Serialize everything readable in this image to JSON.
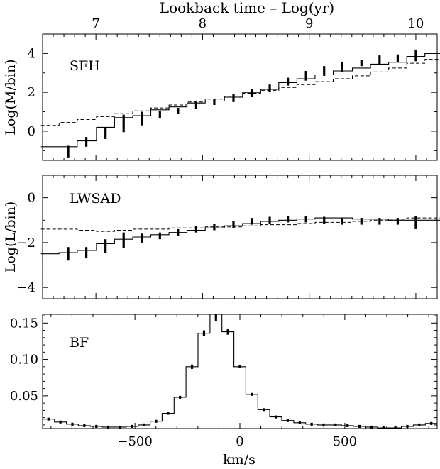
{
  "chart_data": [
    {
      "type": "line",
      "panel_label": "SFH",
      "top_axis_label": "Lookback time – Log(yr)",
      "top_axis_ticks": [
        "7",
        "8",
        "9",
        "10"
      ],
      "top_axis_range": [
        6.5,
        10.2
      ],
      "ylabel": "Log(M/bin)",
      "y_ticks": [
        "0",
        "2",
        "4"
      ],
      "ylim": [
        -1.5,
        5
      ],
      "x_log_age": [
        6.57,
        6.74,
        6.91,
        7.09,
        7.26,
        7.43,
        7.6,
        7.77,
        7.94,
        8.11,
        8.29,
        8.46,
        8.63,
        8.8,
        8.97,
        9.14,
        9.31,
        9.49,
        9.66,
        9.83,
        10.0,
        10.17
      ],
      "series": [
        {
          "style": "solid steps",
          "values": [
            -0.8,
            -0.8,
            -0.5,
            0.2,
            0.7,
            0.8,
            1.1,
            1.25,
            1.45,
            1.55,
            1.75,
            2.0,
            2.15,
            2.5,
            2.7,
            2.9,
            3.1,
            3.25,
            3.45,
            3.55,
            3.85,
            4.0
          ]
        },
        {
          "style": "dashed steps",
          "values": [
            0.3,
            0.45,
            0.6,
            0.75,
            0.9,
            1.05,
            1.2,
            1.35,
            1.5,
            1.65,
            1.8,
            1.95,
            2.1,
            2.25,
            2.4,
            2.55,
            2.7,
            2.85,
            3.05,
            3.25,
            3.5,
            3.7
          ]
        },
        {
          "style": "error bars",
          "values": [
            -1.05,
            -0.55,
            -0.1,
            0.4,
            0.65,
            0.85,
            1.05,
            1.35,
            1.5,
            1.7,
            1.95,
            2.2,
            2.55,
            2.85,
            3.1,
            3.3,
            3.5,
            3.65,
            3.75,
            3.9
          ],
          "errors": [
            0.3,
            0.25,
            0.3,
            0.45,
            0.35,
            0.2,
            0.15,
            0.2,
            0.15,
            0.2,
            0.2,
            0.2,
            0.2,
            0.25,
            0.25,
            0.25,
            0.15,
            0.25,
            0.2,
            0.3
          ]
        }
      ]
    },
    {
      "type": "line",
      "panel_label": "LWSAD",
      "ylabel": "Log(L/bin)",
      "y_ticks": [
        "0",
        "−2",
        "−4"
      ],
      "ylim": [
        -4.5,
        1
      ],
      "x_log_age": [
        6.57,
        6.74,
        6.91,
        7.09,
        7.26,
        7.43,
        7.6,
        7.77,
        7.94,
        8.11,
        8.29,
        8.46,
        8.63,
        8.8,
        8.97,
        9.14,
        9.31,
        9.49,
        9.66,
        9.83,
        10.0,
        10.17
      ],
      "series": [
        {
          "style": "solid steps",
          "values": [
            -2.5,
            -2.45,
            -2.35,
            -2.05,
            -1.85,
            -1.75,
            -1.65,
            -1.55,
            -1.45,
            -1.35,
            -1.25,
            -1.15,
            -1.05,
            -1.0,
            -0.95,
            -0.9,
            -0.9,
            -0.95,
            -0.95,
            -1.0,
            -1.0,
            -1.0
          ]
        },
        {
          "style": "dashed steps",
          "values": [
            -1.4,
            -1.4,
            -1.45,
            -1.5,
            -1.45,
            -1.4,
            -1.4,
            -1.35,
            -1.35,
            -1.3,
            -1.3,
            -1.25,
            -1.2,
            -1.2,
            -1.15,
            -1.1,
            -1.1,
            -1.05,
            -1.0,
            -0.95,
            -0.9,
            -0.9
          ]
        },
        {
          "style": "error bars",
          "values": [
            -2.5,
            -2.45,
            -2.15,
            -1.9,
            -1.8,
            -1.7,
            -1.55,
            -1.4,
            -1.3,
            -1.2,
            -1.05,
            -1.0,
            -0.95,
            -0.95,
            -1.0,
            -1.05,
            -1.05,
            -1.05,
            -1.05,
            -1.1
          ],
          "errors": [
            0.3,
            0.25,
            0.3,
            0.35,
            0.2,
            0.15,
            0.15,
            0.15,
            0.15,
            0.15,
            0.15,
            0.15,
            0.15,
            0.15,
            0.15,
            0.15,
            0.15,
            0.15,
            0.15,
            0.3
          ]
        }
      ]
    },
    {
      "type": "line",
      "panel_label": "BF",
      "xlabel": "km/s",
      "x_ticks": [
        "−500",
        "0",
        "500"
      ],
      "xlim": [
        -940,
        940
      ],
      "y_ticks": [
        "0.05",
        "0.10",
        "0.15"
      ],
      "ylim": [
        0.005,
        0.162
      ],
      "bin_width": 57,
      "bin_centers": [
        -912,
        -855,
        -798,
        -741,
        -684,
        -627,
        -570,
        -513,
        -456,
        -399,
        -342,
        -285,
        -228,
        -171,
        -114,
        -57,
        0,
        57,
        114,
        171,
        228,
        285,
        342,
        399,
        456,
        513,
        570,
        627,
        684,
        741,
        798,
        855,
        912
      ],
      "series": [
        {
          "style": "solid steps",
          "values": [
            0.018,
            0.014,
            0.011,
            0.009,
            0.008,
            0.007,
            0.007,
            0.008,
            0.01,
            0.015,
            0.026,
            0.048,
            0.09,
            0.136,
            0.162,
            0.138,
            0.09,
            0.052,
            0.031,
            0.021,
            0.016,
            0.013,
            0.011,
            0.01,
            0.01,
            0.009,
            0.008,
            0.007,
            0.006,
            0.006,
            0.008,
            0.01,
            0.012
          ]
        },
        {
          "style": "error bars",
          "values": [
            0.018,
            0.014,
            0.011,
            0.009,
            0.008,
            0.007,
            0.007,
            0.008,
            0.01,
            0.015,
            0.026,
            0.048,
            0.09,
            0.136,
            0.158,
            0.138,
            0.09,
            0.052,
            0.031,
            0.021,
            0.016,
            0.013,
            0.011,
            0.01,
            0.01,
            0.009,
            0.008,
            0.007,
            0.006,
            0.006,
            0.008,
            0.01,
            0.012
          ],
          "errors": [
            0.002,
            0.002,
            0.002,
            0.002,
            0.002,
            0.002,
            0.002,
            0.002,
            0.002,
            0.002,
            0.002,
            0.002,
            0.003,
            0.004,
            0.005,
            0.004,
            0.002,
            0.002,
            0.002,
            0.002,
            0.002,
            0.002,
            0.002,
            0.002,
            0.002,
            0.002,
            0.002,
            0.002,
            0.002,
            0.002,
            0.002,
            0.002,
            0.002
          ]
        }
      ]
    }
  ]
}
